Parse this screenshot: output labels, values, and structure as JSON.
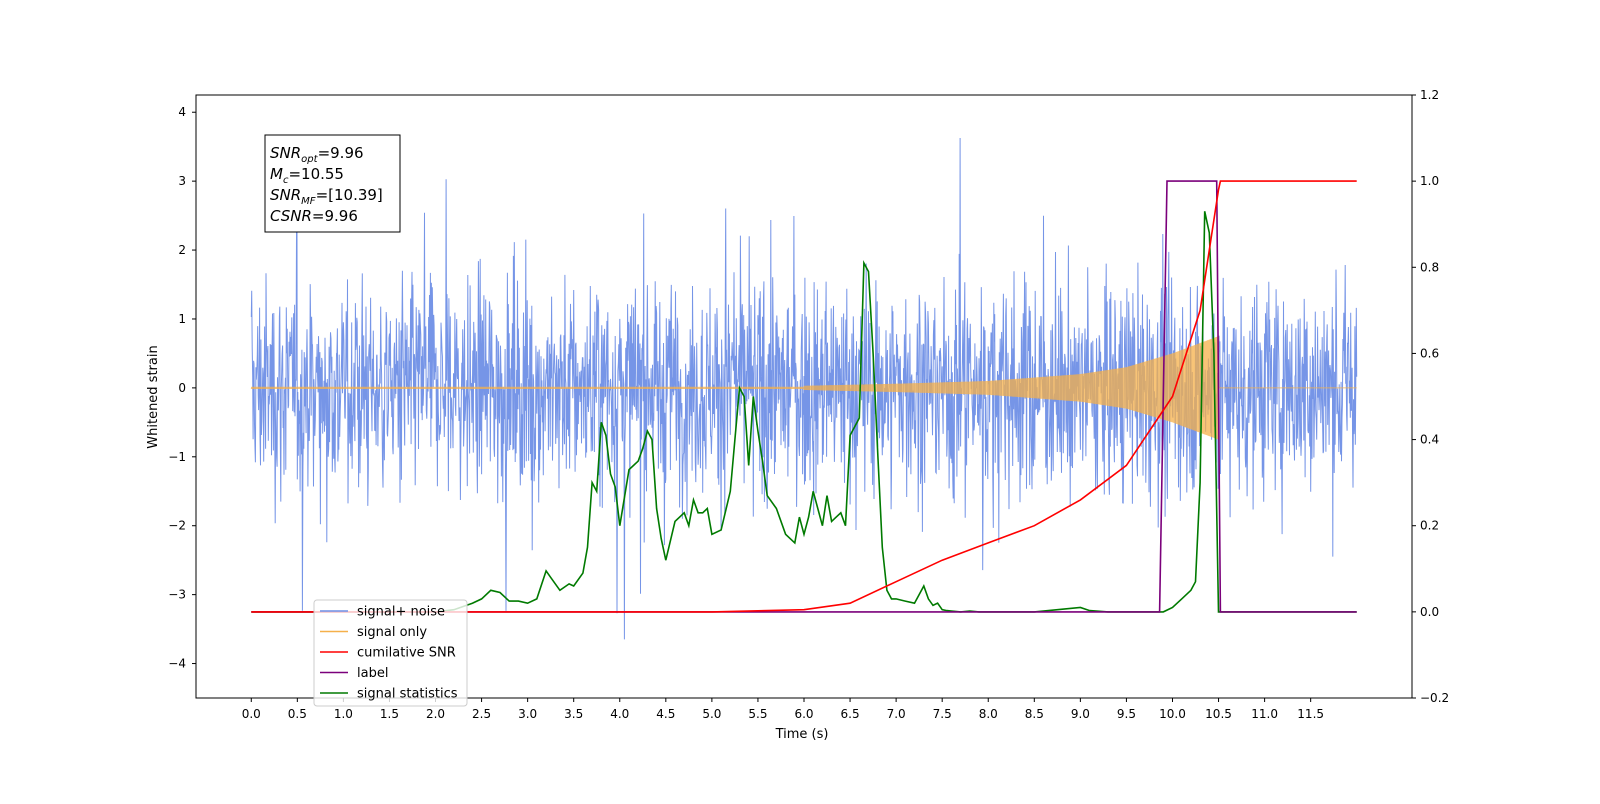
{
  "chart_data": {
    "type": "line",
    "xlabel": "Time (s)",
    "ylabel": "Whitened strain",
    "xlim": [
      -0.6,
      12.6
    ],
    "ylim": [
      -4.5,
      4.25
    ],
    "y2lim": [
      -0.2,
      1.2
    ],
    "x_ticks": [
      "0.0",
      "0.5",
      "1.0",
      "1.5",
      "2.0",
      "2.5",
      "3.0",
      "3.5",
      "4.0",
      "4.5",
      "5.0",
      "5.5",
      "6.0",
      "6.5",
      "7.0",
      "7.5",
      "8.0",
      "8.5",
      "9.0",
      "9.5",
      "10.0",
      "10.5",
      "11.0",
      "11.5"
    ],
    "y_ticks": [
      "4",
      "3",
      "2",
      "1",
      "0",
      "−1",
      "−2",
      "−3",
      "−4"
    ],
    "y2_ticks": [
      "1.2",
      "1.0",
      "0.8",
      "0.6",
      "0.4",
      "0.2",
      "0.0",
      "−0.2"
    ],
    "legend_position": "lower-left",
    "info_box": [
      {
        "label": "SNR",
        "sub": "opt",
        "value": "=9.96"
      },
      {
        "label": "M",
        "sub": "c",
        "value": "=10.55"
      },
      {
        "label": "SNR",
        "sub": "MF",
        "value": "=[10.39]"
      },
      {
        "label": "CSNR",
        "sub": "",
        "value": "=9.96"
      }
    ],
    "series": [
      {
        "name": "signal+ noise",
        "axis": "left",
        "color": "#6f8fe6",
        "amplitude_range": [
          -4.1,
          3.9
        ],
        "x_range": [
          0,
          12
        ]
      },
      {
        "name": "signal only",
        "axis": "left",
        "color": "#f5b04a",
        "note_envelope": {
          "x": [
            6.0,
            7.0,
            8.0,
            9.0,
            9.5,
            10.0,
            10.3,
            10.5
          ],
          "amp": [
            0.03,
            0.06,
            0.1,
            0.2,
            0.3,
            0.5,
            0.65,
            0.75
          ]
        }
      },
      {
        "name": "cumilative SNR",
        "axis": "right",
        "color": "#ff0000",
        "x": [
          0,
          5.0,
          6.0,
          6.5,
          7.0,
          7.5,
          8.0,
          8.5,
          9.0,
          9.5,
          10.0,
          10.3,
          10.5,
          10.52,
          12.0
        ],
        "y": [
          0.0,
          0.0,
          0.005,
          0.02,
          0.07,
          0.12,
          0.16,
          0.2,
          0.26,
          0.34,
          0.5,
          0.7,
          0.98,
          1.0,
          1.0
        ]
      },
      {
        "name": "label",
        "axis": "right",
        "color": "#7b007b",
        "x": [
          0,
          9.86,
          9.94,
          10.48,
          10.52,
          12.0
        ],
        "y": [
          0,
          0,
          1.0,
          1.0,
          0,
          0
        ]
      },
      {
        "name": "signal statistics",
        "axis": "right",
        "color": "#007a00",
        "x": [
          0,
          2.0,
          2.2,
          2.4,
          2.5,
          2.6,
          2.7,
          2.8,
          2.9,
          3.0,
          3.1,
          3.2,
          3.25,
          3.35,
          3.45,
          3.5,
          3.6,
          3.65,
          3.7,
          3.75,
          3.8,
          3.85,
          3.9,
          3.95,
          4.0,
          4.1,
          4.2,
          4.25,
          4.3,
          4.35,
          4.4,
          4.45,
          4.5,
          4.6,
          4.7,
          4.75,
          4.8,
          4.85,
          4.9,
          4.95,
          5.0,
          5.1,
          5.2,
          5.25,
          5.3,
          5.35,
          5.4,
          5.45,
          5.5,
          5.55,
          5.6,
          5.7,
          5.8,
          5.9,
          5.95,
          6.0,
          6.05,
          6.1,
          6.15,
          6.2,
          6.25,
          6.3,
          6.35,
          6.4,
          6.45,
          6.5,
          6.55,
          6.6,
          6.65,
          6.7,
          6.75,
          6.8,
          6.85,
          6.9,
          6.95,
          7.0,
          7.1,
          7.2,
          7.3,
          7.35,
          7.4,
          7.45,
          7.5,
          7.55,
          7.6,
          7.7,
          7.8,
          7.9,
          8.0,
          8.5,
          9.0,
          9.1,
          9.3,
          9.9,
          10.0,
          10.1,
          10.2,
          10.25,
          10.3,
          10.35,
          10.4,
          10.45,
          10.5,
          10.55,
          12.0
        ],
        "y": [
          0,
          0,
          0.005,
          0.02,
          0.03,
          0.05,
          0.045,
          0.025,
          0.025,
          0.02,
          0.03,
          0.095,
          0.08,
          0.05,
          0.065,
          0.06,
          0.09,
          0.15,
          0.3,
          0.28,
          0.44,
          0.41,
          0.32,
          0.29,
          0.2,
          0.33,
          0.35,
          0.38,
          0.42,
          0.4,
          0.24,
          0.17,
          0.12,
          0.21,
          0.23,
          0.2,
          0.26,
          0.23,
          0.23,
          0.24,
          0.18,
          0.19,
          0.28,
          0.4,
          0.52,
          0.5,
          0.34,
          0.5,
          0.42,
          0.35,
          0.27,
          0.24,
          0.18,
          0.16,
          0.22,
          0.18,
          0.22,
          0.28,
          0.24,
          0.2,
          0.27,
          0.21,
          0.22,
          0.23,
          0.2,
          0.41,
          0.43,
          0.45,
          0.81,
          0.79,
          0.6,
          0.37,
          0.15,
          0.05,
          0.03,
          0.03,
          0.025,
          0.02,
          0.06,
          0.03,
          0.015,
          0.02,
          0.005,
          0.003,
          0.002,
          0.0,
          0.002,
          0.0,
          0.0,
          0.0,
          0.01,
          0.003,
          0.0,
          0.0,
          0.01,
          0.03,
          0.05,
          0.07,
          0.3,
          0.93,
          0.88,
          0.6,
          0.0,
          0.0,
          0.0
        ]
      }
    ]
  }
}
